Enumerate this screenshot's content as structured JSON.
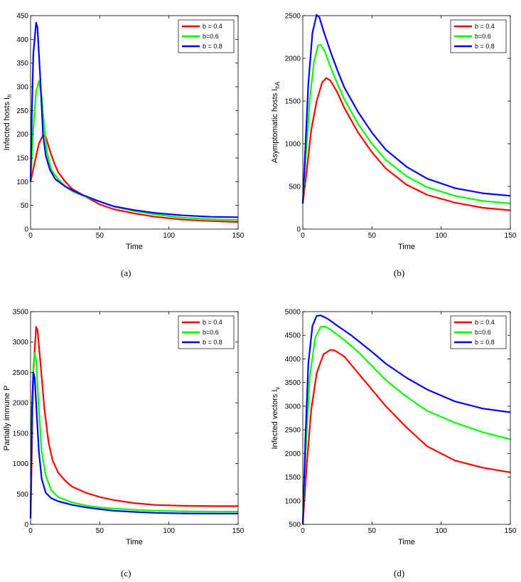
{
  "chart_data": [
    {
      "type": "line",
      "caption": "(a)",
      "xlabel": "Time",
      "ylabel": "Infected  hosts I",
      "ylabel_sub": "h",
      "xlim": [
        0,
        150
      ],
      "ylim": [
        0,
        450
      ],
      "xticks": [
        0,
        50,
        100,
        150
      ],
      "yticks": [
        0,
        50,
        100,
        150,
        200,
        250,
        300,
        350,
        400,
        450
      ],
      "legend": [
        "b = 0.4",
        "b=0.6",
        "b = 0.8"
      ],
      "series": [
        {
          "name": "b = 0.4",
          "color": "#ff0000",
          "points": [
            [
              0,
              100
            ],
            [
              3,
              140
            ],
            [
              6,
              180
            ],
            [
              9,
              198
            ],
            [
              11,
              195
            ],
            [
              14,
              165
            ],
            [
              17,
              140
            ],
            [
              20,
              120
            ],
            [
              25,
              100
            ],
            [
              30,
              85
            ],
            [
              40,
              68
            ],
            [
              50,
              52
            ],
            [
              60,
              42
            ],
            [
              75,
              33
            ],
            [
              90,
              26
            ],
            [
              110,
              20
            ],
            [
              130,
              17
            ],
            [
              150,
              15
            ]
          ]
        },
        {
          "name": "b=0.6",
          "color": "#00ff00",
          "points": [
            [
              0,
              100
            ],
            [
              2,
              210
            ],
            [
              4,
              290
            ],
            [
              6,
              312
            ],
            [
              8,
              280
            ],
            [
              10,
              210
            ],
            [
              12,
              160
            ],
            [
              15,
              125
            ],
            [
              20,
              105
            ],
            [
              25,
              90
            ],
            [
              30,
              80
            ],
            [
              40,
              68
            ],
            [
              50,
              58
            ],
            [
              60,
              48
            ],
            [
              75,
              38
            ],
            [
              90,
              31
            ],
            [
              110,
              24
            ],
            [
              130,
              21
            ],
            [
              150,
              19
            ]
          ]
        },
        {
          "name": "b = 0.8",
          "color": "#0000ff",
          "points": [
            [
              0,
              100
            ],
            [
              1,
              250
            ],
            [
              2,
              370
            ],
            [
              4,
              435
            ],
            [
              5,
              425
            ],
            [
              7,
              320
            ],
            [
              9,
              200
            ],
            [
              11,
              155
            ],
            [
              14,
              125
            ],
            [
              18,
              105
            ],
            [
              25,
              90
            ],
            [
              35,
              75
            ],
            [
              50,
              58
            ],
            [
              60,
              48
            ],
            [
              75,
              40
            ],
            [
              90,
              34
            ],
            [
              110,
              29
            ],
            [
              130,
              26
            ],
            [
              150,
              25
            ]
          ]
        }
      ]
    },
    {
      "type": "line",
      "caption": "(b)",
      "xlabel": "Time",
      "ylabel": "Asymptomatic  hosts I",
      "ylabel_sub": "hA",
      "xlim": [
        0,
        150
      ],
      "ylim": [
        0,
        2500
      ],
      "xticks": [
        0,
        50,
        100,
        150
      ],
      "yticks": [
        0,
        500,
        1000,
        1500,
        2000,
        2500
      ],
      "legend": [
        "b = 0.4",
        "b=0.6",
        "b = 0.8"
      ],
      "series": [
        {
          "name": "b = 0.4",
          "color": "#ff0000",
          "points": [
            [
              0,
              300
            ],
            [
              3,
              700
            ],
            [
              6,
              1150
            ],
            [
              10,
              1500
            ],
            [
              14,
              1720
            ],
            [
              17,
              1770
            ],
            [
              20,
              1740
            ],
            [
              25,
              1600
            ],
            [
              30,
              1420
            ],
            [
              40,
              1130
            ],
            [
              50,
              900
            ],
            [
              60,
              710
            ],
            [
              75,
              520
            ],
            [
              90,
              400
            ],
            [
              110,
              310
            ],
            [
              130,
              250
            ],
            [
              150,
              220
            ]
          ]
        },
        {
          "name": "b=0.6",
          "color": "#00ff00",
          "points": [
            [
              0,
              300
            ],
            [
              2,
              800
            ],
            [
              5,
              1500
            ],
            [
              8,
              1950
            ],
            [
              11,
              2150
            ],
            [
              13,
              2160
            ],
            [
              16,
              2080
            ],
            [
              20,
              1900
            ],
            [
              25,
              1700
            ],
            [
              30,
              1520
            ],
            [
              40,
              1230
            ],
            [
              50,
              1000
            ],
            [
              60,
              810
            ],
            [
              75,
              620
            ],
            [
              90,
              490
            ],
            [
              110,
              390
            ],
            [
              130,
              330
            ],
            [
              150,
              300
            ]
          ]
        },
        {
          "name": "b = 0.8",
          "color": "#0000ff",
          "points": [
            [
              0,
              300
            ],
            [
              2,
              1000
            ],
            [
              4,
              1700
            ],
            [
              7,
              2300
            ],
            [
              10,
              2510
            ],
            [
              12,
              2480
            ],
            [
              15,
              2320
            ],
            [
              20,
              2080
            ],
            [
              25,
              1860
            ],
            [
              30,
              1660
            ],
            [
              40,
              1370
            ],
            [
              50,
              1130
            ],
            [
              60,
              930
            ],
            [
              75,
              730
            ],
            [
              90,
              590
            ],
            [
              110,
              480
            ],
            [
              130,
              420
            ],
            [
              150,
              390
            ]
          ]
        }
      ]
    },
    {
      "type": "line",
      "caption": "(c)",
      "xlabel": "Time",
      "ylabel": "Partially immune P",
      "ylabel_sub": "",
      "xlim": [
        0,
        150
      ],
      "ylim": [
        0,
        3500
      ],
      "xticks": [
        0,
        50,
        100,
        150
      ],
      "yticks": [
        0,
        500,
        1000,
        1500,
        2000,
        2500,
        3000,
        3500
      ],
      "legend": [
        "b = 0.4",
        "b=0.6",
        "b = 0.8"
      ],
      "series": [
        {
          "name": "b = 0.4",
          "color": "#ff0000",
          "points": [
            [
              0,
              100
            ],
            [
              1,
              1200
            ],
            [
              2,
              2500
            ],
            [
              4,
              3250
            ],
            [
              5,
              3200
            ],
            [
              7,
              2700
            ],
            [
              10,
              1900
            ],
            [
              13,
              1350
            ],
            [
              16,
              1050
            ],
            [
              20,
              850
            ],
            [
              25,
              720
            ],
            [
              30,
              620
            ],
            [
              40,
              520
            ],
            [
              50,
              450
            ],
            [
              60,
              400
            ],
            [
              75,
              350
            ],
            [
              90,
              320
            ],
            [
              110,
              305
            ],
            [
              130,
              300
            ],
            [
              150,
              300
            ]
          ]
        },
        {
          "name": "b=0.6",
          "color": "#00ff00",
          "points": [
            [
              0,
              100
            ],
            [
              1,
              1600
            ],
            [
              2,
              2600
            ],
            [
              3,
              2820
            ],
            [
              4,
              2700
            ],
            [
              6,
              1900
            ],
            [
              8,
              1200
            ],
            [
              11,
              800
            ],
            [
              15,
              560
            ],
            [
              20,
              450
            ],
            [
              30,
              360
            ],
            [
              40,
              310
            ],
            [
              50,
              280
            ],
            [
              60,
              260
            ],
            [
              75,
              240
            ],
            [
              90,
              225
            ],
            [
              110,
              215
            ],
            [
              130,
              210
            ],
            [
              150,
              210
            ]
          ]
        },
        {
          "name": "b = 0.8",
          "color": "#0000ff",
          "points": [
            [
              0,
              100
            ],
            [
              1,
              1900
            ],
            [
              2,
              2500
            ],
            [
              3,
              2420
            ],
            [
              4,
              2000
            ],
            [
              6,
              1200
            ],
            [
              8,
              750
            ],
            [
              11,
              520
            ],
            [
              15,
              430
            ],
            [
              20,
              380
            ],
            [
              30,
              320
            ],
            [
              40,
              280
            ],
            [
              50,
              250
            ],
            [
              60,
              225
            ],
            [
              75,
              205
            ],
            [
              90,
              190
            ],
            [
              110,
              180
            ],
            [
              130,
              178
            ],
            [
              150,
              178
            ]
          ]
        }
      ]
    },
    {
      "type": "line",
      "caption": "(d)",
      "xlabel": "Time",
      "ylabel": "Infected vectors I",
      "ylabel_sub": "v",
      "xlim": [
        0,
        150
      ],
      "ylim": [
        500,
        5000
      ],
      "xticks": [
        0,
        50,
        100,
        150
      ],
      "yticks": [
        500,
        1000,
        1500,
        2000,
        2500,
        3000,
        3500,
        4000,
        4500,
        5000
      ],
      "legend": [
        "b = 0.4",
        "b=0.6",
        "b = 0.8"
      ],
      "series": [
        {
          "name": "b = 0.4",
          "color": "#ff0000",
          "points": [
            [
              0,
              500
            ],
            [
              3,
              1800
            ],
            [
              6,
              2900
            ],
            [
              10,
              3700
            ],
            [
              15,
              4100
            ],
            [
              20,
              4190
            ],
            [
              23,
              4180
            ],
            [
              30,
              4050
            ],
            [
              40,
              3700
            ],
            [
              50,
              3350
            ],
            [
              60,
              3000
            ],
            [
              75,
              2550
            ],
            [
              90,
              2150
            ],
            [
              110,
              1850
            ],
            [
              130,
              1700
            ],
            [
              150,
              1600
            ]
          ]
        },
        {
          "name": "b=0.6",
          "color": "#00ff00",
          "points": [
            [
              0,
              500
            ],
            [
              2,
              2000
            ],
            [
              5,
              3600
            ],
            [
              9,
              4450
            ],
            [
              13,
              4680
            ],
            [
              16,
              4690
            ],
            [
              20,
              4620
            ],
            [
              30,
              4400
            ],
            [
              40,
              4150
            ],
            [
              50,
              3850
            ],
            [
              60,
              3550
            ],
            [
              75,
              3200
            ],
            [
              90,
              2900
            ],
            [
              110,
              2650
            ],
            [
              130,
              2450
            ],
            [
              150,
              2300
            ]
          ]
        },
        {
          "name": "b = 0.8",
          "color": "#0000ff",
          "points": [
            [
              0,
              500
            ],
            [
              2,
              2400
            ],
            [
              4,
              3900
            ],
            [
              7,
              4700
            ],
            [
              10,
              4910
            ],
            [
              13,
              4920
            ],
            [
              18,
              4850
            ],
            [
              25,
              4700
            ],
            [
              35,
              4500
            ],
            [
              50,
              4150
            ],
            [
              60,
              3900
            ],
            [
              75,
              3600
            ],
            [
              90,
              3350
            ],
            [
              110,
              3100
            ],
            [
              130,
              2950
            ],
            [
              150,
              2870
            ]
          ]
        }
      ]
    }
  ]
}
